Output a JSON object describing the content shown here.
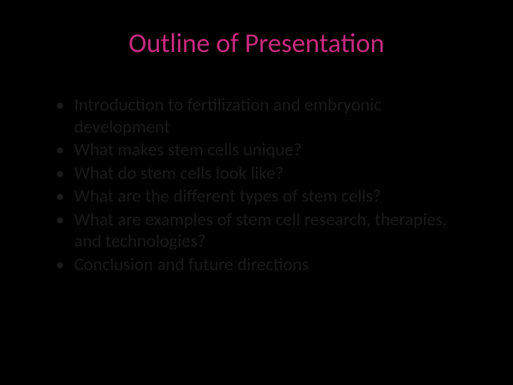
{
  "slide": {
    "title": "Outline of Presentation",
    "title_color": "#c72a7f",
    "title_fontsize": 38,
    "background_color": "#000000",
    "body_text_color": "#1a1a1a",
    "body_fontsize": 25,
    "bullets": [
      "Introduction to fertilization and embryonic development",
      "What makes stem cells unique?",
      "What do stem cells look like?",
      "What are the different types of stem cells?",
      "What are examples of stem cell research, therapies, and technologies?",
      "Conclusion and future directions"
    ]
  }
}
